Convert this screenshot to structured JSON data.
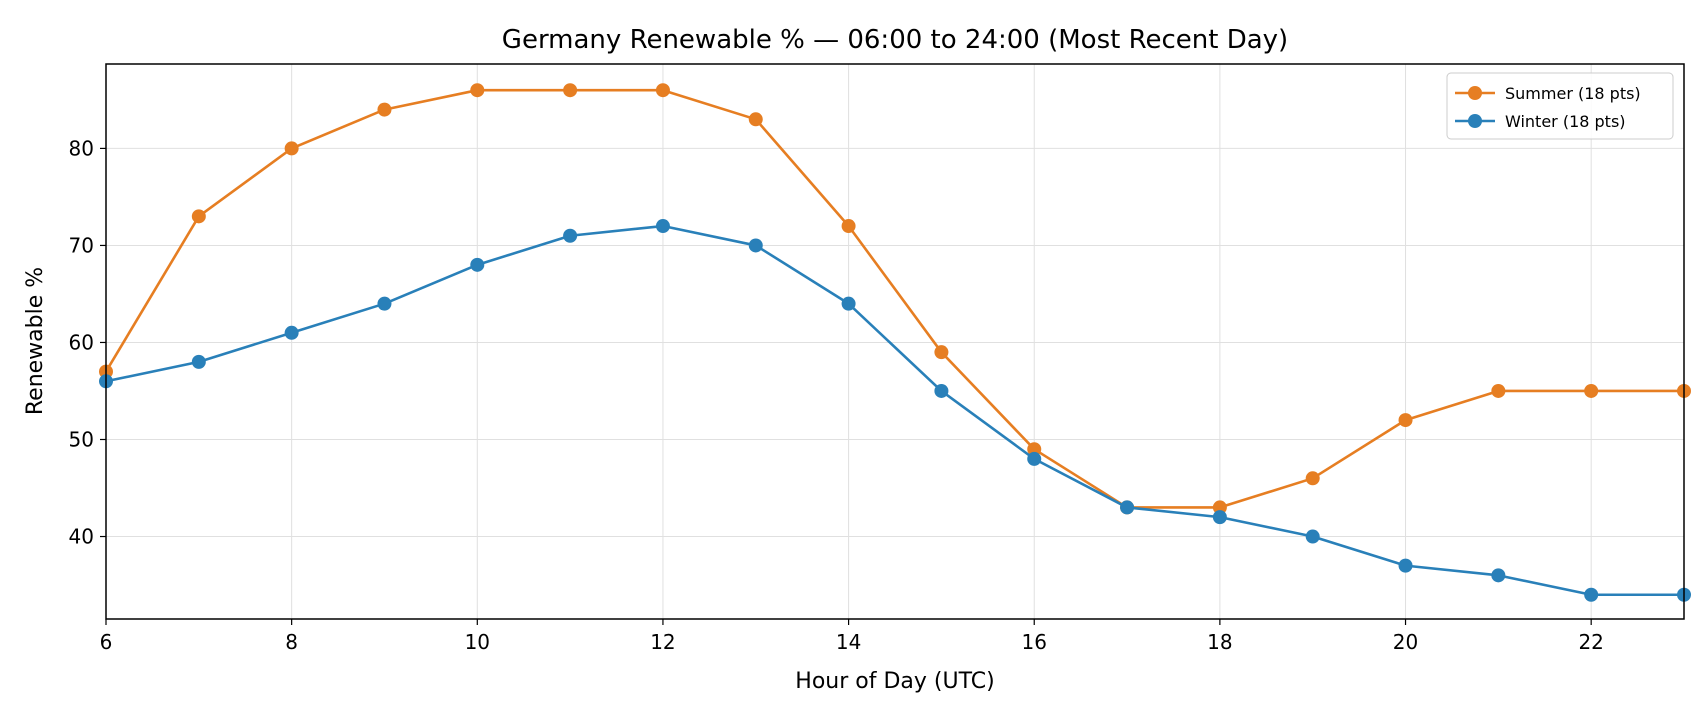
{
  "chart_data": {
    "type": "line",
    "title": "Germany Renewable % — 06:00 to 24:00 (Most Recent Day)",
    "xlabel": "Hour of Day (UTC)",
    "ylabel": "Renewable %",
    "xlim": [
      6,
      23
    ],
    "ylim": [
      31.5,
      88.7
    ],
    "xticks": [
      6,
      8,
      10,
      12,
      14,
      16,
      18,
      20,
      22
    ],
    "yticks": [
      40,
      50,
      60,
      70,
      80
    ],
    "grid": true,
    "legend_position": "top-right",
    "x": [
      6,
      7,
      8,
      9,
      10,
      11,
      12,
      13,
      14,
      15,
      16,
      17,
      18,
      19,
      20,
      21,
      22,
      23
    ],
    "series": [
      {
        "name": "Summer (18 pts)",
        "color": "#e67e22",
        "values": [
          57,
          73,
          80,
          84,
          86,
          86,
          86,
          83,
          72,
          59,
          49,
          43,
          43,
          46,
          52,
          55,
          55,
          55
        ]
      },
      {
        "name": "Winter (18 pts)",
        "color": "#2980b9",
        "values": [
          56,
          58,
          61,
          64,
          68,
          71,
          72,
          70,
          64,
          55,
          48,
          43,
          42,
          40,
          37,
          36,
          34,
          34
        ]
      }
    ]
  }
}
